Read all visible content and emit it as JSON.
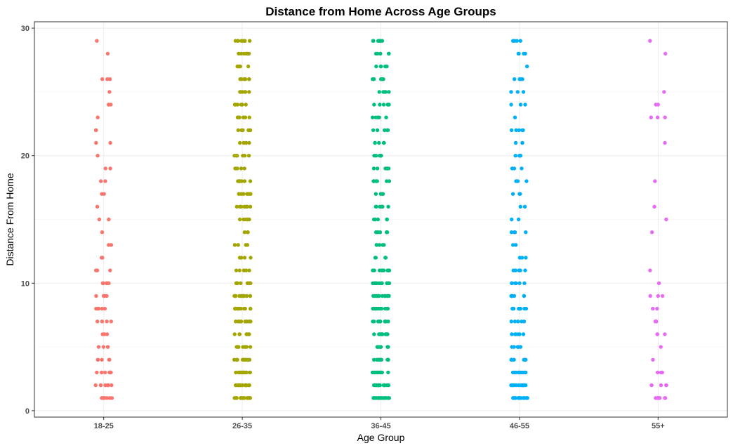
{
  "chart_data": {
    "type": "scatter",
    "title": "Distance from Home Across Age Groups",
    "xlabel": "Age Group",
    "ylabel": "Distance From Home",
    "categories": [
      "18-25",
      "26-35",
      "36-45",
      "46-55",
      "55+"
    ],
    "ylim": [
      -0.5,
      30.5
    ],
    "yticks": [
      0,
      10,
      20,
      30
    ],
    "grid": true,
    "jitter": "horizontal",
    "series": [
      {
        "category": "18-25",
        "color": "#F8766D",
        "values": [
          1,
          1,
          1,
          1,
          1,
          1,
          1,
          1,
          2,
          2,
          2,
          2,
          2,
          2,
          2,
          2,
          3,
          3,
          3,
          3,
          3,
          3,
          3,
          3,
          4,
          4,
          4,
          4,
          4,
          5,
          5,
          5,
          5,
          6,
          6,
          6,
          7,
          7,
          7,
          7,
          8,
          8,
          8,
          8,
          8,
          9,
          9,
          9,
          9,
          10,
          10,
          10,
          10,
          10,
          10,
          11,
          11,
          11,
          12,
          12,
          13,
          13,
          14,
          15,
          15,
          16,
          17,
          17,
          18,
          18,
          19,
          19,
          20,
          21,
          21,
          22,
          22,
          22,
          23,
          24,
          24,
          24,
          25,
          26,
          26,
          26,
          28,
          29
        ]
      },
      {
        "category": "26-35",
        "color": "#A3A500",
        "values": [
          1,
          1,
          1,
          1,
          1,
          1,
          1,
          1,
          1,
          1,
          1,
          1,
          1,
          1,
          1,
          2,
          2,
          2,
          2,
          2,
          2,
          2,
          2,
          2,
          2,
          2,
          2,
          2,
          2,
          2,
          3,
          3,
          3,
          3,
          3,
          3,
          3,
          3,
          3,
          3,
          3,
          3,
          3,
          3,
          4,
          4,
          4,
          4,
          4,
          4,
          4,
          4,
          4,
          4,
          4,
          5,
          5,
          5,
          5,
          5,
          5,
          5,
          5,
          5,
          6,
          6,
          6,
          6,
          6,
          6,
          6,
          7,
          7,
          7,
          7,
          7,
          7,
          7,
          7,
          7,
          7,
          7,
          8,
          8,
          8,
          8,
          8,
          8,
          8,
          8,
          8,
          8,
          8,
          8,
          9,
          9,
          9,
          9,
          9,
          9,
          9,
          9,
          9,
          9,
          9,
          9,
          10,
          10,
          10,
          10,
          10,
          10,
          10,
          10,
          10,
          10,
          10,
          11,
          11,
          11,
          11,
          11,
          12,
          12,
          12,
          12,
          13,
          13,
          13,
          13,
          14,
          14,
          14,
          15,
          15,
          15,
          15,
          15,
          15,
          15,
          16,
          16,
          16,
          16,
          16,
          16,
          16,
          16,
          17,
          17,
          17,
          17,
          17,
          17,
          18,
          18,
          18,
          18,
          18,
          18,
          19,
          19,
          19,
          19,
          19,
          20,
          20,
          20,
          20,
          20,
          20,
          20,
          21,
          21,
          21,
          21,
          21,
          22,
          22,
          22,
          22,
          22,
          22,
          23,
          23,
          23,
          23,
          23,
          23,
          23,
          24,
          24,
          24,
          24,
          24,
          24,
          25,
          25,
          25,
          25,
          25,
          25,
          26,
          26,
          26,
          26,
          26,
          26,
          27,
          27,
          27,
          27,
          27,
          27,
          28,
          28,
          28,
          28,
          28,
          28,
          28,
          29,
          29,
          29,
          29,
          29,
          29,
          29,
          29
        ]
      },
      {
        "category": "36-45",
        "color": "#00BF7D",
        "values": [
          1,
          1,
          1,
          1,
          1,
          1,
          1,
          1,
          1,
          1,
          1,
          1,
          1,
          1,
          1,
          2,
          2,
          2,
          2,
          2,
          2,
          2,
          2,
          2,
          2,
          2,
          2,
          2,
          2,
          2,
          2,
          3,
          3,
          3,
          3,
          3,
          3,
          3,
          3,
          3,
          3,
          3,
          3,
          3,
          4,
          4,
          4,
          4,
          4,
          4,
          4,
          4,
          4,
          4,
          4,
          5,
          5,
          5,
          5,
          5,
          5,
          5,
          5,
          5,
          5,
          6,
          6,
          6,
          6,
          6,
          6,
          6,
          6,
          6,
          6,
          6,
          7,
          7,
          7,
          7,
          7,
          7,
          7,
          7,
          7,
          7,
          7,
          8,
          8,
          8,
          8,
          8,
          8,
          8,
          8,
          8,
          8,
          8,
          8,
          9,
          9,
          9,
          9,
          9,
          9,
          9,
          9,
          9,
          9,
          9,
          9,
          10,
          10,
          10,
          10,
          10,
          10,
          10,
          10,
          10,
          10,
          10,
          10,
          10,
          11,
          11,
          11,
          11,
          11,
          11,
          11,
          11,
          11,
          12,
          12,
          12,
          12,
          12,
          13,
          13,
          13,
          13,
          13,
          14,
          14,
          14,
          14,
          14,
          14,
          15,
          15,
          15,
          15,
          15,
          15,
          16,
          16,
          16,
          16,
          16,
          16,
          16,
          17,
          17,
          17,
          17,
          17,
          17,
          18,
          18,
          18,
          18,
          18,
          18,
          19,
          19,
          19,
          19,
          19,
          19,
          20,
          20,
          20,
          20,
          20,
          21,
          21,
          21,
          21,
          21,
          22,
          22,
          22,
          22,
          22,
          23,
          23,
          23,
          23,
          23,
          24,
          24,
          24,
          24,
          24,
          24,
          25,
          25,
          25,
          25,
          25,
          25,
          26,
          26,
          26,
          26,
          26,
          26,
          27,
          27,
          27,
          27,
          27,
          27,
          28,
          28,
          28,
          28,
          28,
          28,
          29,
          29,
          29,
          29,
          29,
          29,
          29
        ]
      },
      {
        "category": "46-55",
        "color": "#00B0F6",
        "values": [
          1,
          1,
          1,
          1,
          1,
          1,
          1,
          1,
          1,
          1,
          1,
          1,
          1,
          1,
          1,
          2,
          2,
          2,
          2,
          2,
          2,
          2,
          2,
          2,
          2,
          2,
          2,
          2,
          2,
          3,
          3,
          3,
          3,
          3,
          3,
          3,
          3,
          3,
          3,
          4,
          4,
          4,
          4,
          4,
          4,
          4,
          4,
          4,
          5,
          5,
          5,
          5,
          5,
          5,
          6,
          6,
          6,
          6,
          6,
          6,
          7,
          7,
          7,
          7,
          7,
          8,
          8,
          8,
          8,
          8,
          8,
          8,
          8,
          9,
          9,
          9,
          9,
          9,
          9,
          9,
          10,
          10,
          10,
          10,
          10,
          10,
          11,
          11,
          11,
          11,
          11,
          12,
          12,
          12,
          13,
          13,
          14,
          14,
          14,
          14,
          15,
          15,
          16,
          16,
          17,
          17,
          17,
          18,
          18,
          18,
          19,
          19,
          19,
          20,
          20,
          20,
          20,
          21,
          21,
          21,
          22,
          22,
          22,
          22,
          22,
          23,
          24,
          24,
          24,
          25,
          25,
          25,
          26,
          26,
          26,
          26,
          27,
          28,
          28,
          28,
          28,
          29,
          29,
          29,
          29
        ]
      },
      {
        "category": "55+",
        "color": "#E76BF3",
        "values": [
          1,
          1,
          1,
          1,
          1,
          1,
          1,
          2,
          2,
          2,
          2,
          2,
          3,
          3,
          3,
          4,
          5,
          6,
          6,
          6,
          7,
          7,
          7,
          7,
          8,
          8,
          9,
          9,
          9,
          10,
          11,
          14,
          15,
          16,
          18,
          21,
          23,
          23,
          23,
          24,
          24,
          25,
          28,
          29
        ]
      }
    ]
  }
}
